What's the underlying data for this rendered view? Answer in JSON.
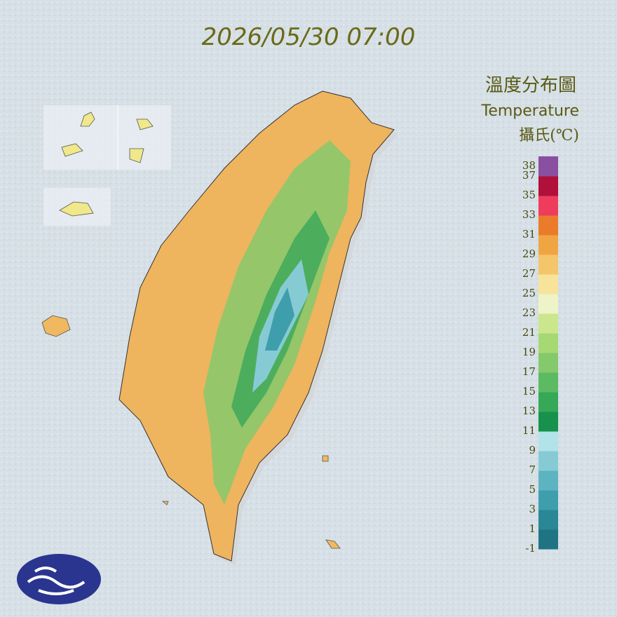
{
  "header": {
    "timestamp": "2026/05/30 07:00"
  },
  "legend": {
    "title": "溫度分布圖",
    "subtitle": "Temperature",
    "unit": "攝氏(℃)",
    "range": [
      -1,
      39
    ],
    "ticks": [
      38,
      37,
      35,
      33,
      31,
      29,
      27,
      25,
      23,
      21,
      19,
      17,
      15,
      13,
      11,
      9,
      7,
      5,
      3,
      1,
      -1
    ],
    "colors": [
      "#1f7483",
      "#2a8796",
      "#3f9eac",
      "#5cb4c0",
      "#86cbd4",
      "#b2e3e8",
      "#17924c",
      "#36a858",
      "#5cba62",
      "#84c96c",
      "#a6d874",
      "#cbe68c",
      "#eef3c8",
      "#f7e39a",
      "#f4c56a",
      "#f0a543",
      "#ea7b2a",
      "#f03c5c",
      "#b0103a",
      "#8a4fa0"
    ]
  }
}
